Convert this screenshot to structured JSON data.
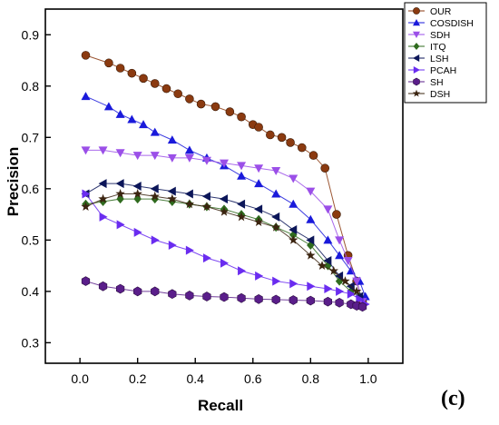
{
  "chart_data": {
    "type": "line",
    "xlabel": "Recall",
    "ylabel": "Precision",
    "xlim": [
      -0.12,
      1.12
    ],
    "ylim": [
      0.26,
      0.95
    ],
    "xticks": [
      0.0,
      0.2,
      0.4,
      0.6,
      0.8,
      1.0
    ],
    "xtick_labels": [
      "0.0",
      "0.2",
      "0.4",
      "0.6",
      "0.8",
      "1.0"
    ],
    "yticks": [
      0.3,
      0.4,
      0.5,
      0.6,
      0.7,
      0.8,
      0.9
    ],
    "ytick_labels": [
      "0.3",
      "0.4",
      "0.5",
      "0.6",
      "0.7",
      "0.8",
      "0.9"
    ],
    "grid": false,
    "legend_position": "top-right",
    "series": [
      {
        "name": "OUR",
        "color": "#8b3a10",
        "marker": "circle",
        "x": [
          0.02,
          0.1,
          0.14,
          0.18,
          0.22,
          0.26,
          0.3,
          0.34,
          0.38,
          0.42,
          0.47,
          0.52,
          0.56,
          0.6,
          0.62,
          0.66,
          0.7,
          0.73,
          0.77,
          0.81,
          0.85,
          0.89,
          0.93,
          0.96,
          0.98
        ],
        "y": [
          0.86,
          0.845,
          0.835,
          0.825,
          0.815,
          0.805,
          0.795,
          0.785,
          0.775,
          0.765,
          0.76,
          0.75,
          0.74,
          0.725,
          0.72,
          0.705,
          0.7,
          0.69,
          0.68,
          0.665,
          0.64,
          0.55,
          0.47,
          0.42,
          0.38
        ]
      },
      {
        "name": "COSDISH",
        "color": "#1a1adb",
        "marker": "triangle-up",
        "x": [
          0.02,
          0.1,
          0.14,
          0.18,
          0.22,
          0.26,
          0.32,
          0.38,
          0.44,
          0.5,
          0.56,
          0.62,
          0.68,
          0.74,
          0.8,
          0.86,
          0.9,
          0.94,
          0.97,
          0.99
        ],
        "y": [
          0.78,
          0.76,
          0.745,
          0.735,
          0.725,
          0.71,
          0.695,
          0.675,
          0.66,
          0.645,
          0.625,
          0.61,
          0.59,
          0.57,
          0.54,
          0.5,
          0.47,
          0.44,
          0.42,
          0.39
        ]
      },
      {
        "name": "SDH",
        "color": "#9b4fe8",
        "marker": "triangle-down",
        "x": [
          0.02,
          0.08,
          0.14,
          0.2,
          0.26,
          0.32,
          0.38,
          0.44,
          0.5,
          0.56,
          0.62,
          0.68,
          0.74,
          0.8,
          0.86,
          0.9,
          0.93,
          0.96,
          0.98
        ],
        "y": [
          0.675,
          0.675,
          0.67,
          0.665,
          0.665,
          0.66,
          0.66,
          0.655,
          0.65,
          0.645,
          0.64,
          0.635,
          0.62,
          0.595,
          0.56,
          0.5,
          0.46,
          0.42,
          0.38
        ]
      },
      {
        "name": "ITQ",
        "color": "#2f6b1e",
        "marker": "diamond",
        "x": [
          0.02,
          0.08,
          0.14,
          0.2,
          0.26,
          0.32,
          0.38,
          0.44,
          0.5,
          0.56,
          0.62,
          0.68,
          0.74,
          0.8,
          0.86,
          0.9,
          0.94,
          0.97
        ],
        "y": [
          0.57,
          0.575,
          0.58,
          0.58,
          0.58,
          0.575,
          0.57,
          0.565,
          0.56,
          0.55,
          0.54,
          0.525,
          0.51,
          0.49,
          0.45,
          0.42,
          0.4,
          0.39
        ]
      },
      {
        "name": "LSH",
        "color": "#0c1659",
        "marker": "triangle-left",
        "x": [
          0.02,
          0.08,
          0.14,
          0.2,
          0.26,
          0.32,
          0.38,
          0.44,
          0.5,
          0.56,
          0.62,
          0.68,
          0.74,
          0.8,
          0.86,
          0.9,
          0.94,
          0.97
        ],
        "y": [
          0.59,
          0.61,
          0.61,
          0.605,
          0.6,
          0.595,
          0.59,
          0.585,
          0.58,
          0.57,
          0.56,
          0.545,
          0.52,
          0.5,
          0.46,
          0.43,
          0.41,
          0.39
        ]
      },
      {
        "name": "PCAH",
        "color": "#6a2cf0",
        "marker": "triangle-right",
        "x": [
          0.02,
          0.08,
          0.14,
          0.2,
          0.26,
          0.32,
          0.38,
          0.44,
          0.5,
          0.56,
          0.62,
          0.68,
          0.74,
          0.8,
          0.86,
          0.9,
          0.94,
          0.97,
          0.99
        ],
        "y": [
          0.59,
          0.545,
          0.53,
          0.515,
          0.5,
          0.49,
          0.48,
          0.465,
          0.455,
          0.44,
          0.43,
          0.42,
          0.415,
          0.41,
          0.405,
          0.4,
          0.395,
          0.385,
          0.375
        ]
      },
      {
        "name": "SH",
        "color": "#5a1e8a",
        "marker": "hexagon",
        "x": [
          0.02,
          0.08,
          0.14,
          0.2,
          0.26,
          0.32,
          0.38,
          0.44,
          0.5,
          0.56,
          0.62,
          0.68,
          0.74,
          0.8,
          0.86,
          0.9,
          0.94,
          0.96,
          0.98
        ],
        "y": [
          0.42,
          0.41,
          0.405,
          0.4,
          0.4,
          0.395,
          0.392,
          0.39,
          0.389,
          0.387,
          0.385,
          0.384,
          0.383,
          0.382,
          0.38,
          0.378,
          0.375,
          0.372,
          0.37
        ]
      },
      {
        "name": "DSH",
        "color": "#3b2410",
        "marker": "star",
        "x": [
          0.02,
          0.08,
          0.14,
          0.2,
          0.26,
          0.32,
          0.38,
          0.44,
          0.5,
          0.56,
          0.62,
          0.68,
          0.74,
          0.8,
          0.84,
          0.88,
          0.92,
          0.96
        ],
        "y": [
          0.565,
          0.58,
          0.59,
          0.59,
          0.585,
          0.58,
          0.57,
          0.565,
          0.555,
          0.545,
          0.535,
          0.525,
          0.5,
          0.47,
          0.45,
          0.44,
          0.42,
          0.4
        ]
      }
    ]
  },
  "panel_label": "(c)"
}
